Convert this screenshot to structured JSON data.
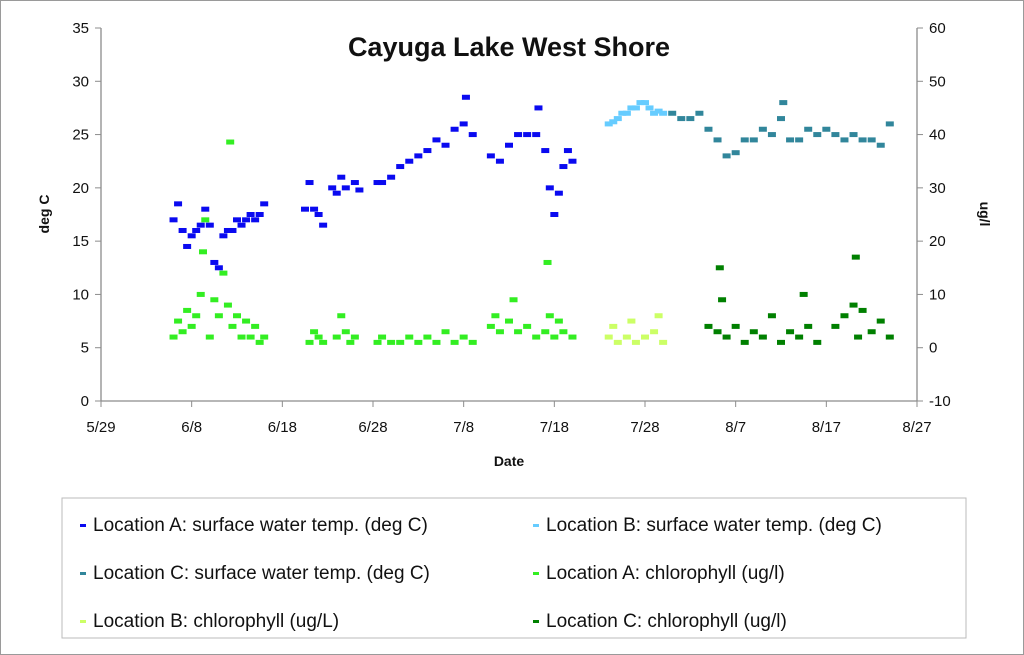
{
  "chart_data": {
    "type": "scatter",
    "title": "Cayuga Lake West Shore",
    "xlabel": "Date",
    "ylabel": "deg C",
    "y2label": "ug/l",
    "xlim": [
      "5/29",
      "8/27"
    ],
    "x_ticks": [
      "5/29",
      "6/8",
      "6/18",
      "6/28",
      "7/8",
      "7/18",
      "7/28",
      "8/7",
      "8/17",
      "8/27"
    ],
    "ylim": [
      0,
      35
    ],
    "y_ticks": [
      0,
      5,
      10,
      15,
      20,
      25,
      30,
      35
    ],
    "y2lim": [
      -10,
      60
    ],
    "y2_ticks": [
      -10,
      0,
      10,
      20,
      30,
      40,
      50,
      60
    ],
    "grid": false,
    "legend_position": "bottom",
    "series": [
      {
        "name": "Location A: surface water temp. (deg C)",
        "axis": "left",
        "color": "#0a0af0",
        "points": [
          [
            "6/6",
            17
          ],
          [
            "6/6 12:00",
            18.5
          ],
          [
            "6/7",
            16
          ],
          [
            "6/7 12:00",
            14.5
          ],
          [
            "6/8",
            15.5
          ],
          [
            "6/8 12:00",
            16
          ],
          [
            "6/9",
            16.5
          ],
          [
            "6/9 12:00",
            18
          ],
          [
            "6/10",
            16.5
          ],
          [
            "6/10 12:00",
            13
          ],
          [
            "6/11",
            12.5
          ],
          [
            "6/11 12:00",
            15.5
          ],
          [
            "6/12",
            16
          ],
          [
            "6/12 12:00",
            16
          ],
          [
            "6/13",
            17
          ],
          [
            "6/13 12:00",
            16.5
          ],
          [
            "6/14",
            17
          ],
          [
            "6/14 12:00",
            17.5
          ],
          [
            "6/15",
            17
          ],
          [
            "6/15 12:00",
            17.5
          ],
          [
            "6/16",
            18.5
          ],
          [
            "6/20 12:00",
            18
          ],
          [
            "6/21",
            20.5
          ],
          [
            "6/21 12:00",
            18
          ],
          [
            "6/22",
            17.5
          ],
          [
            "6/22 12:00",
            16.5
          ],
          [
            "6/23 12:00",
            20
          ],
          [
            "6/24",
            19.5
          ],
          [
            "6/24 12:00",
            21
          ],
          [
            "6/25",
            20
          ],
          [
            "6/26",
            20.5
          ],
          [
            "6/26 12:00",
            19.8
          ],
          [
            "6/28 12:00",
            20.5
          ],
          [
            "6/29",
            20.5
          ],
          [
            "6/30",
            21
          ],
          [
            "7/1",
            22
          ],
          [
            "7/2",
            22.5
          ],
          [
            "7/3",
            23
          ],
          [
            "7/4",
            23.5
          ],
          [
            "7/5",
            24.5
          ],
          [
            "7/6",
            24
          ],
          [
            "7/7",
            25.5
          ],
          [
            "7/8",
            26
          ],
          [
            "7/8 06:00",
            28.5
          ],
          [
            "7/9",
            25
          ],
          [
            "7/11",
            23
          ],
          [
            "7/12",
            22.5
          ],
          [
            "7/13",
            24
          ],
          [
            "7/14",
            25
          ],
          [
            "7/15",
            25
          ],
          [
            "7/16",
            25
          ],
          [
            "7/16 06:00",
            27.5
          ],
          [
            "7/17",
            23.5
          ],
          [
            "7/17 12:00",
            20
          ],
          [
            "7/18",
            17.5
          ],
          [
            "7/18 12:00",
            19.5
          ],
          [
            "7/19",
            22
          ],
          [
            "7/19 12:00",
            23.5
          ],
          [
            "7/20",
            22.5
          ]
        ]
      },
      {
        "name": "Location B: surface water temp. (deg C)",
        "axis": "left",
        "color": "#66ccff",
        "points": [
          [
            "7/24",
            26
          ],
          [
            "7/24 12:00",
            26.2
          ],
          [
            "7/25",
            26.5
          ],
          [
            "7/25 12:00",
            27
          ],
          [
            "7/26",
            27
          ],
          [
            "7/26 12:00",
            27.5
          ],
          [
            "7/27",
            27.5
          ],
          [
            "7/27 12:00",
            28
          ],
          [
            "7/28",
            28
          ],
          [
            "7/28 12:00",
            27.5
          ],
          [
            "7/29",
            27
          ],
          [
            "7/29 12:00",
            27.2
          ],
          [
            "7/30",
            27
          ]
        ]
      },
      {
        "name": "Location C: surface water temp. (deg C)",
        "axis": "left",
        "color": "#31869b",
        "points": [
          [
            "7/31",
            27
          ],
          [
            "8/1",
            26.5
          ],
          [
            "8/2",
            26.5
          ],
          [
            "8/3",
            27
          ],
          [
            "8/4",
            25.5
          ],
          [
            "8/5",
            24.5
          ],
          [
            "8/6",
            23
          ],
          [
            "8/7",
            23.3
          ],
          [
            "8/8",
            24.5
          ],
          [
            "8/9",
            24.5
          ],
          [
            "8/10",
            25.5
          ],
          [
            "8/11",
            25
          ],
          [
            "8/12",
            26.5
          ],
          [
            "8/12 06:00",
            28
          ],
          [
            "8/13",
            24.5
          ],
          [
            "8/14",
            24.5
          ],
          [
            "8/15",
            25.5
          ],
          [
            "8/16",
            25
          ],
          [
            "8/17",
            25.5
          ],
          [
            "8/18",
            25
          ],
          [
            "8/19",
            24.5
          ],
          [
            "8/20",
            25
          ],
          [
            "8/21",
            24.5
          ],
          [
            "8/22",
            24.5
          ],
          [
            "8/23",
            24
          ],
          [
            "8/24",
            26
          ]
        ]
      },
      {
        "name": "Location A: chlorophyll (ug/l)",
        "axis": "right",
        "color": "#33ee22",
        "points": [
          [
            "6/6",
            2
          ],
          [
            "6/6 12:00",
            5
          ],
          [
            "6/7",
            3
          ],
          [
            "6/7 12:00",
            7
          ],
          [
            "6/8",
            4
          ],
          [
            "6/8 12:00",
            6
          ],
          [
            "6/9",
            10
          ],
          [
            "6/9 06:00",
            18
          ],
          [
            "6/9 12:00",
            24
          ],
          [
            "6/10",
            2
          ],
          [
            "6/10 12:00",
            9
          ],
          [
            "6/11",
            6
          ],
          [
            "6/11 12:00",
            14
          ],
          [
            "6/12",
            8
          ],
          [
            "6/12 06:00",
            38.6
          ],
          [
            "6/12 12:00",
            4
          ],
          [
            "6/13",
            6
          ],
          [
            "6/13 12:00",
            2
          ],
          [
            "6/14",
            5
          ],
          [
            "6/14 12:00",
            2
          ],
          [
            "6/15",
            4
          ],
          [
            "6/15 12:00",
            1
          ],
          [
            "6/16",
            2
          ],
          [
            "6/21",
            1
          ],
          [
            "6/21 12:00",
            3
          ],
          [
            "6/22",
            2
          ],
          [
            "6/22 12:00",
            1
          ],
          [
            "6/24",
            2
          ],
          [
            "6/24 12:00",
            6
          ],
          [
            "6/25",
            3
          ],
          [
            "6/25 12:00",
            1
          ],
          [
            "6/26",
            2
          ],
          [
            "6/28 12:00",
            1
          ],
          [
            "6/29",
            2
          ],
          [
            "6/30",
            1
          ],
          [
            "7/1",
            1
          ],
          [
            "7/2",
            2
          ],
          [
            "7/3",
            1
          ],
          [
            "7/4",
            2
          ],
          [
            "7/5",
            1
          ],
          [
            "7/6",
            3
          ],
          [
            "7/7",
            1
          ],
          [
            "7/8",
            2
          ],
          [
            "7/9",
            1
          ],
          [
            "7/11",
            4
          ],
          [
            "7/11 12:00",
            6
          ],
          [
            "7/12",
            3
          ],
          [
            "7/13",
            5
          ],
          [
            "7/13 12:00",
            9
          ],
          [
            "7/14",
            3
          ],
          [
            "7/15",
            4
          ],
          [
            "7/16",
            2
          ],
          [
            "7/17",
            3
          ],
          [
            "7/17 06:00",
            16
          ],
          [
            "7/17 12:00",
            6
          ],
          [
            "7/18",
            2
          ],
          [
            "7/18 12:00",
            5
          ],
          [
            "7/19",
            3
          ],
          [
            "7/20",
            2
          ]
        ]
      },
      {
        "name": "Location B: chlorophyll (ug/L)",
        "axis": "right",
        "color": "#ccff66",
        "points": [
          [
            "7/24",
            2
          ],
          [
            "7/24 12:00",
            4
          ],
          [
            "7/25",
            1
          ],
          [
            "7/26",
            2
          ],
          [
            "7/26 12:00",
            5
          ],
          [
            "7/27",
            1
          ],
          [
            "7/28",
            2
          ],
          [
            "7/29",
            3
          ],
          [
            "7/29 12:00",
            6
          ],
          [
            "7/30",
            1
          ]
        ]
      },
      {
        "name": "Location C: chlorophyll (ug/l)",
        "axis": "right",
        "color": "#008000",
        "points": [
          [
            "8/4",
            4
          ],
          [
            "8/5",
            3
          ],
          [
            "8/5 06:00",
            15
          ],
          [
            "8/5 12:00",
            9
          ],
          [
            "8/6",
            2
          ],
          [
            "8/7",
            4
          ],
          [
            "8/8",
            1
          ],
          [
            "8/9",
            3
          ],
          [
            "8/10",
            2
          ],
          [
            "8/11",
            6
          ],
          [
            "8/12",
            1
          ],
          [
            "8/13",
            3
          ],
          [
            "8/14",
            2
          ],
          [
            "8/14 12:00",
            10
          ],
          [
            "8/15",
            4
          ],
          [
            "8/16",
            1
          ],
          [
            "8/18",
            4
          ],
          [
            "8/19",
            6
          ],
          [
            "8/20",
            8
          ],
          [
            "8/20 06:00",
            17
          ],
          [
            "8/20 12:00",
            2
          ],
          [
            "8/21",
            7
          ],
          [
            "8/22",
            3
          ],
          [
            "8/23",
            5
          ],
          [
            "8/24",
            2
          ]
        ]
      }
    ]
  }
}
